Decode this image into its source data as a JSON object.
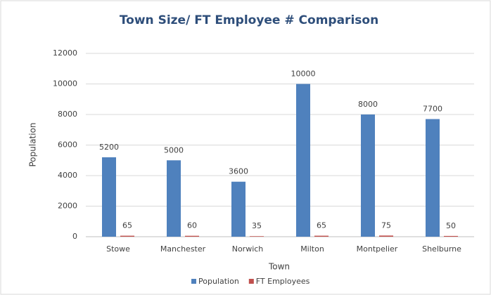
{
  "chart_data": {
    "type": "bar",
    "title": "Town Size/ FT Employee # Comparison",
    "x_label": "Town",
    "y_label": "Population",
    "categories": [
      "Stowe",
      "Manchester",
      "Norwich",
      "Milton",
      "Montpelier",
      "Shelburne"
    ],
    "series": [
      {
        "name": "Population",
        "color": "#4f81bd",
        "values": [
          5200,
          5000,
          3600,
          10000,
          8000,
          7700
        ]
      },
      {
        "name": "FT Employees",
        "color": "#c0504d",
        "values": [
          65,
          60,
          35,
          65,
          75,
          50
        ]
      }
    ],
    "ylim": [
      0,
      12000
    ],
    "yticks": [
      0,
      2000,
      4000,
      6000,
      8000,
      10000,
      12000
    ],
    "grid": true,
    "legend": "bottom"
  }
}
